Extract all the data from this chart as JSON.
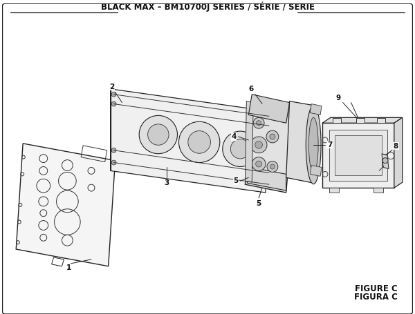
{
  "title": "BLACK MAX – BM10700J SERIES / SÉRIE / SERIE",
  "figure_label": "FIGURE C",
  "figura_label": "FIGURA C",
  "bg_color": "#ffffff",
  "border_color": "#1a1a1a",
  "text_color": "#111111",
  "title_fontsize": 8.5,
  "fig_label_fontsize": 8.5
}
